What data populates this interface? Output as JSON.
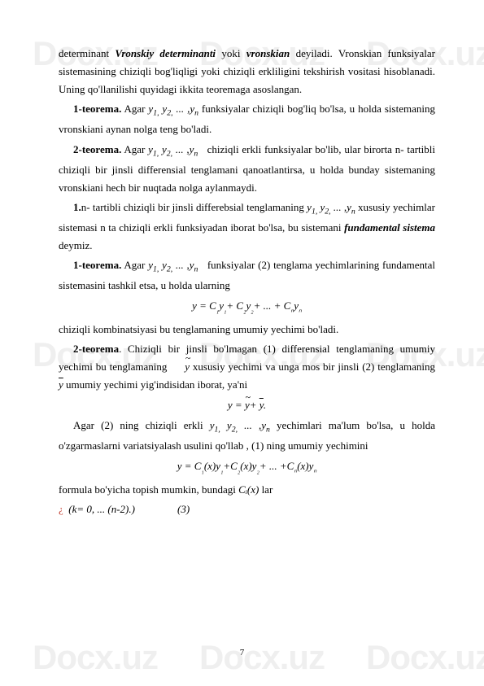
{
  "watermark": "Docx.uz",
  "page_number": "7",
  "p1": {
    "a": "determinant ",
    "b": "Vronskiy determinanti",
    "c": " yoki ",
    "d": "vronskian",
    "e": " deyiladi. Vronskian funksiyalar sistemasining chiziqli bog'liqligi yoki chiziqli erkliligini tekshirish vositasi hisoblanadi. Uning qo'llanilishi quyidagi ikkita teoremaga asoslangan."
  },
  "p2": {
    "h": "1-teorema.",
    "a": " Agar ",
    "b": " funksiyalar chiziqli bog'liq bo'lsa, u holda sistemaning vronskiani aynan nolga teng bo'ladi."
  },
  "p3": {
    "h": "2-teorema.",
    "a": " Agar ",
    "b": " chiziqli erkli funksiyalar bo'lib, ular birorta n- tartibli chiziqli bir jinsli differensial tenglamani qanoatlantirsa, u holda bunday sistemaning vronskiani hech bir nuqtada nolga aylanmaydi."
  },
  "p4": {
    "h": "1.",
    "a": "n- tartibli chiziqli bir jinsli differebsial tenglamaning ",
    "b": " xususiy yechimlar sistemasi n ta chiziqli erkli funksiyadan iborat bo'lsa, bu sistemani ",
    "c": "fundamental sistema",
    "d": " deymiz."
  },
  "p5": {
    "h": "1-teorema.",
    "a": " Agar ",
    "b": " funksiyalar (2) tenglama yechimlarining fundamental sistemasini tashkil etsa, u holda ularning"
  },
  "p6": "chiziqli kombinatsiyasi bu tenglamaning umumiy yechimi bo'ladi.",
  "p7": {
    "h": "2-teorema",
    "a": ". Chiziqli bir jinsli bo'lmagan (1) differensial tenglamaning umumiy yechimi bu tenglamaning ",
    "b": " xususiy yechimi va unga mos bir jinsli (2) tenglamaning ",
    "c": " umumiy yechimi yig'indisidan iborat, ya'ni"
  },
  "p8": {
    "a": "Agar (2) ning chiziqli erkli ",
    "b": " yechimlari ma'lum bo'lsa, u holda o'zgarmaslarni variatsiyalash usulini qo'llab , (1) ning umumiy yechimini"
  },
  "p9": {
    "a": "formula bo'yicha topish mumkin, bundagi ",
    "b": " lar"
  },
  "p10": {
    "a": "(k= 0, ... (n-2).)",
    "b": "(3)"
  },
  "ylist_short": "y₁, y₂, ... ,yₙ",
  "formula1_parts": {
    "a": "y = C",
    "b": "₁",
    "c": "y",
    "d": "₁",
    "e": "+ C",
    "f": "₂",
    "g": "y",
    "h": "₂",
    "i": "+ ... + C",
    "j": "ₙ",
    "k": "y",
    "l": "ₙ"
  },
  "formula3_parts": {
    "a": "y = C",
    "b": "₁",
    "c": "(x)y",
    "d": "₁",
    "e": "+C",
    "f": "₂",
    "g": "(x)y",
    "h": "₂",
    "i": "+ ... +C",
    "j": "ₙ",
    "k": "(x)y",
    "l": "ₙ"
  },
  "ci_x": "Cᵢ(x)",
  "y_tilde": "y",
  "y_bar": "y"
}
